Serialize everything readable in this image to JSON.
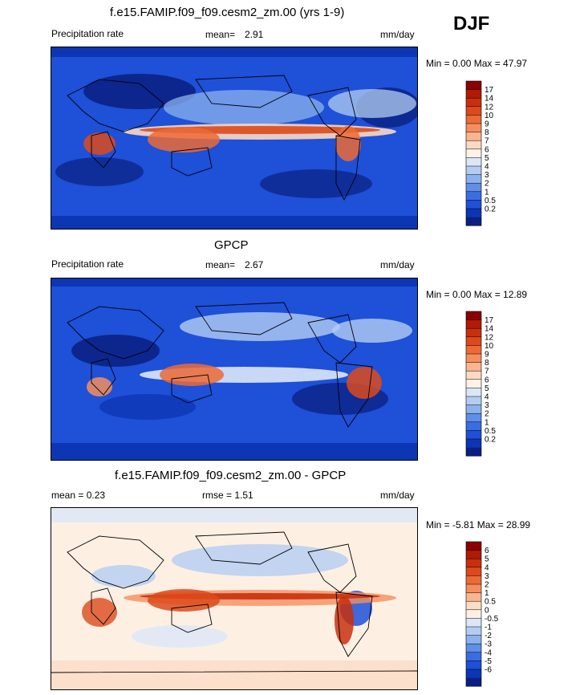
{
  "season": "DJF",
  "panels": [
    {
      "title": "f.e15.FAMIP.f09_f09.cesm2_zm.00 (yrs 1-9)",
      "left_label": "Precipitation rate",
      "mean_label": "mean=",
      "mean_value": "2.91",
      "units": "mm/day",
      "minmax": "Min =   0.00 Max =  47.97",
      "scheme": "abs"
    },
    {
      "title": "GPCP",
      "left_label": "Precipitation rate",
      "mean_label": "mean=",
      "mean_value": "2.67",
      "units": "mm/day",
      "minmax": "Min =   0.00 Max =  12.89",
      "scheme": "abs"
    },
    {
      "title": "f.e15.FAMIP.f09_f09.cesm2_zm.00 - GPCP",
      "left_label": "mean =   0.23",
      "mid_label": "rmse =   1.51",
      "units": "mm/day",
      "minmax": "Min =  -5.81 Max =  28.99",
      "scheme": "diff"
    }
  ],
  "chart_data": {
    "type": "heatmap",
    "colorbars": {
      "abs": {
        "levels": [
          "17",
          "14",
          "12",
          "10",
          "9",
          "8",
          "7",
          "6",
          "5",
          "4",
          "3",
          "2",
          "1",
          "0.5",
          "0.2"
        ],
        "colors": [
          "#8b0000",
          "#b01a06",
          "#c8300d",
          "#dc4a1c",
          "#ec6a36",
          "#f58e5e",
          "#fab48f",
          "#fbd9c2",
          "#fdf2e6",
          "#dbe7f7",
          "#b3cdf2",
          "#8cb2ee",
          "#5f8fe6",
          "#3a6ee0",
          "#1e50d8",
          "#0c36b4",
          "#0a1f80"
        ]
      },
      "diff": {
        "levels": [
          "6",
          "5",
          "4",
          "3",
          "2",
          "1",
          "0.5",
          "0",
          "-0.5",
          "-1",
          "-2",
          "-3",
          "-4",
          "-5",
          "-6"
        ],
        "colors": [
          "#8b0000",
          "#b01a06",
          "#c8300d",
          "#dc4a1c",
          "#ec6a36",
          "#f58e5e",
          "#fab48f",
          "#fbdcc6",
          "#fdf0e3",
          "#dbe7f7",
          "#b3cdf2",
          "#8cb2ee",
          "#5f8fe6",
          "#3a6ee0",
          "#1e50d8",
          "#0c36b4",
          "#0a1f80"
        ]
      }
    }
  }
}
